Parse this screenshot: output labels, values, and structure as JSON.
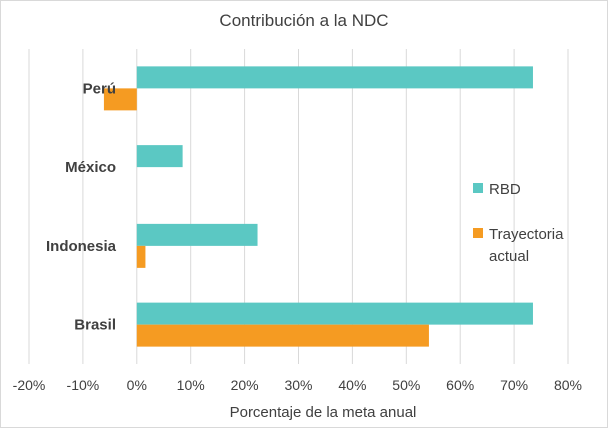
{
  "chart_data": {
    "type": "bar",
    "orientation": "horizontal",
    "title": "Contribución a la NDC",
    "xlabel": "Porcentaje de la meta anual",
    "ylabel": "",
    "categories": [
      "Brasil",
      "Indonesia",
      "México",
      "Perú"
    ],
    "series": [
      {
        "name": "RBD",
        "color": "#5BC8C3",
        "values": [
          73.5,
          22.4,
          8.5,
          73.5
        ]
      },
      {
        "name": "Trayectoria actual",
        "color": "#F59B22",
        "values": [
          54.2,
          1.6,
          0,
          -6.1
        ]
      }
    ],
    "xlim": [
      -20,
      80
    ],
    "xticks": [
      -20,
      -10,
      0,
      10,
      20,
      30,
      40,
      50,
      60,
      70,
      80
    ],
    "xtick_labels": [
      "-20%",
      "-10%",
      "0%",
      "10%",
      "20%",
      "30%",
      "40%",
      "50%",
      "60%",
      "70%",
      "80%"
    ],
    "grid": "vertical",
    "legend_position": "right"
  }
}
